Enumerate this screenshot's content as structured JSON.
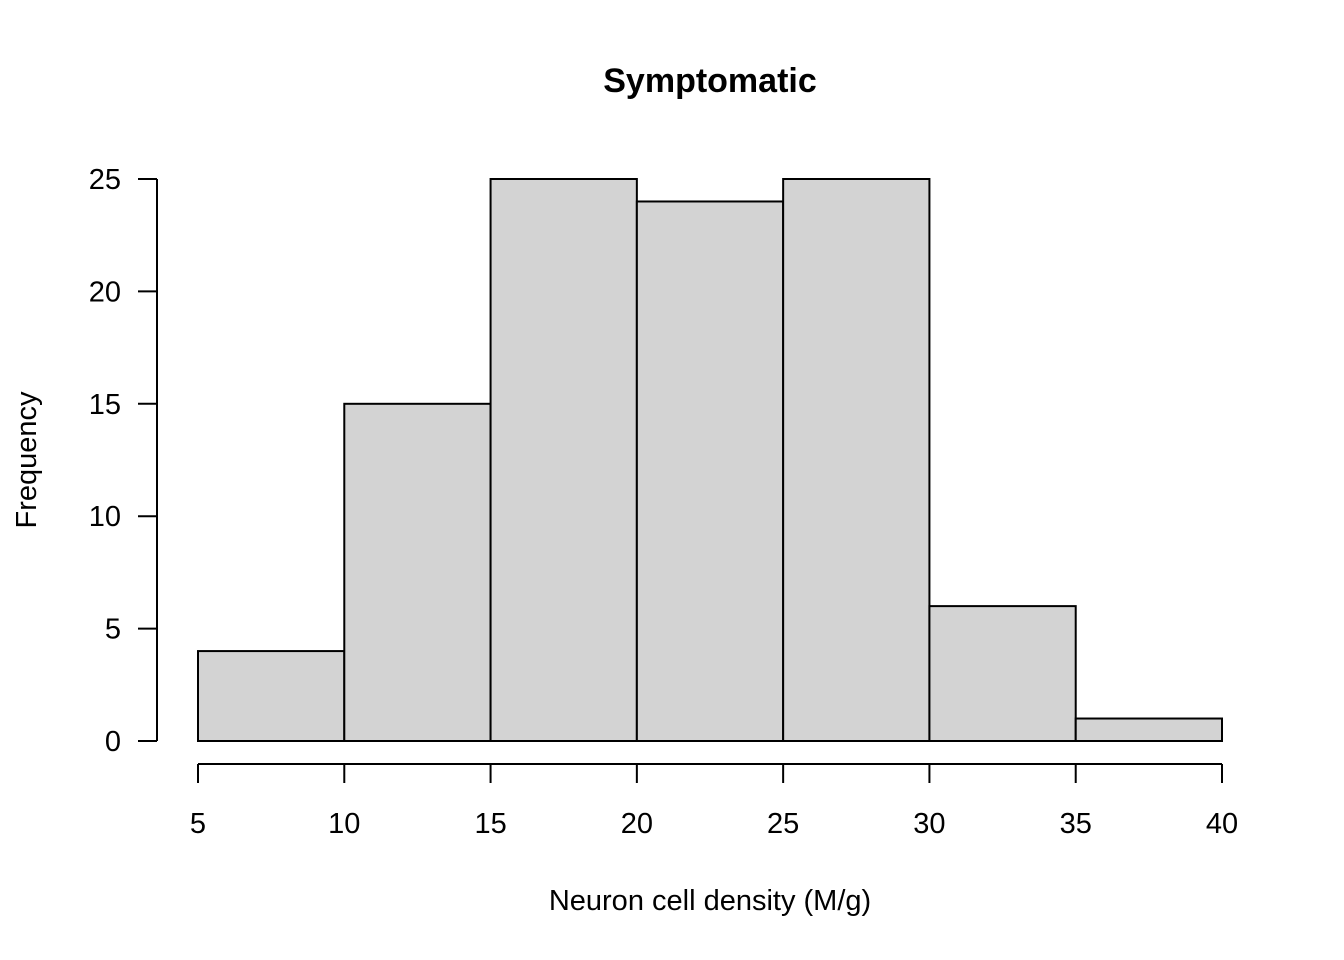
{
  "chart_data": {
    "type": "bar",
    "subtype": "histogram",
    "title": "Symptomatic",
    "xlabel": "Neuron cell density (M/g)",
    "ylabel": "Frequency",
    "bins": [
      {
        "start": 5,
        "end": 10,
        "count": 4
      },
      {
        "start": 10,
        "end": 15,
        "count": 15
      },
      {
        "start": 15,
        "end": 20,
        "count": 25
      },
      {
        "start": 20,
        "end": 25,
        "count": 24
      },
      {
        "start": 25,
        "end": 30,
        "count": 25
      },
      {
        "start": 30,
        "end": 35,
        "count": 6
      },
      {
        "start": 35,
        "end": 40,
        "count": 1
      }
    ],
    "xlim": [
      5,
      40
    ],
    "ylim": [
      0,
      25
    ],
    "x_ticks": [
      "5",
      "10",
      "15",
      "20",
      "25",
      "30",
      "35",
      "40"
    ],
    "y_ticks": [
      "0",
      "5",
      "10",
      "15",
      "20",
      "25"
    ],
    "bar_color": "#d3d3d3",
    "grid": false,
    "legend": "none"
  }
}
